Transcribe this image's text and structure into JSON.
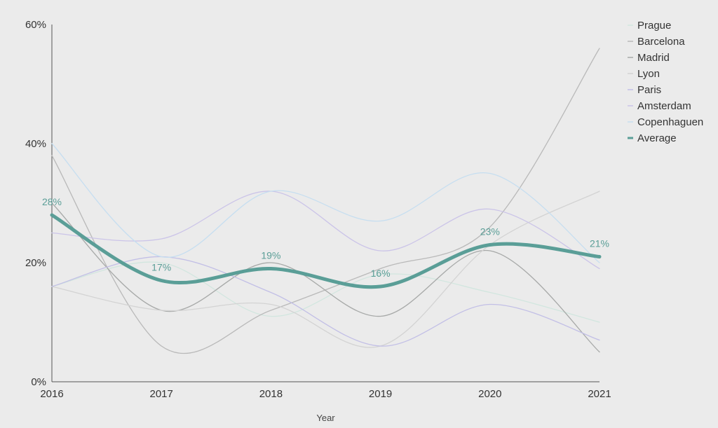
{
  "chart_data": {
    "type": "line",
    "xlabel": "Year",
    "ylabel": "",
    "x": [
      "2016",
      "2017",
      "2018",
      "2019",
      "2020",
      "2021"
    ],
    "ylim": [
      0,
      60
    ],
    "yticks": [
      0,
      20,
      40,
      60
    ],
    "ytick_labels": [
      "0%",
      "20%",
      "40%",
      "60%"
    ],
    "grid": false,
    "legend_placement": "right",
    "series": [
      {
        "name": "Prague",
        "values": [
          16,
          20,
          11,
          18,
          15,
          10
        ],
        "color": "#d2e6df"
      },
      {
        "name": "Barcelona",
        "values": [
          38,
          6,
          12,
          19,
          26,
          56
        ],
        "color": "#b9b9b9"
      },
      {
        "name": "Madrid",
        "values": [
          30,
          12,
          20,
          11,
          22,
          5
        ],
        "color": "#a7a9a8"
      },
      {
        "name": "Lyon",
        "values": [
          16,
          12,
          13,
          6,
          23,
          32
        ],
        "color": "#d3d3d3"
      },
      {
        "name": "Paris",
        "values": [
          16,
          21,
          15,
          6,
          13,
          7
        ],
        "color": "#c2bfe6"
      },
      {
        "name": "Amsterdam",
        "values": [
          25,
          24,
          32,
          22,
          29,
          19
        ],
        "color": "#cbc4e8"
      },
      {
        "name": "Copenhaguen",
        "values": [
          40,
          21,
          32,
          27,
          35,
          20
        ],
        "color": "#c6def0"
      },
      {
        "name": "Average",
        "values": [
          28,
          17,
          19,
          16,
          23,
          21
        ],
        "color": "#5a9e97",
        "emphasis": true,
        "data_labels": [
          "28%",
          "17%",
          "19%",
          "16%",
          "23%",
          "21%"
        ]
      }
    ]
  }
}
